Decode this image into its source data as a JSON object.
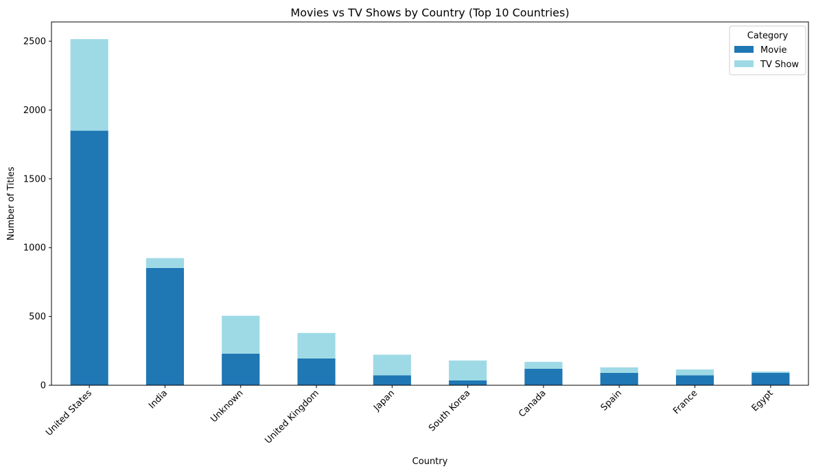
{
  "chart_data": {
    "type": "bar",
    "stacked": true,
    "title": "Movies vs TV Shows by Country (Top 10 Countries)",
    "xlabel": "Country",
    "ylabel": "Number of Titles",
    "categories": [
      "United States",
      "India",
      "Unknown",
      "United Kingdom",
      "Japan",
      "South Korea",
      "Canada",
      "Spain",
      "France",
      "Egypt"
    ],
    "series": [
      {
        "name": "Movie",
        "color": "#1f77b4",
        "values": [
          1850,
          852,
          230,
          195,
          72,
          35,
          120,
          90,
          72,
          90
        ]
      },
      {
        "name": "TV Show",
        "color": "#9edae5",
        "values": [
          665,
          72,
          275,
          185,
          150,
          145,
          50,
          40,
          43,
          10
        ]
      }
    ],
    "ylim": [
      0,
      2640
    ],
    "yticks": [
      0,
      500,
      1000,
      1500,
      2000,
      2500
    ],
    "grid": false,
    "legend": {
      "title": "Category",
      "placement": "top-right"
    }
  }
}
